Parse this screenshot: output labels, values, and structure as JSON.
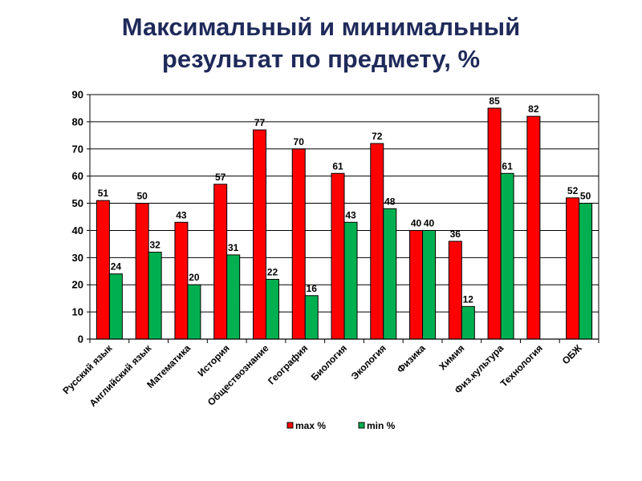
{
  "chart_data": {
    "type": "bar",
    "title_line1": "Максимальный и минимальный",
    "title_line2": "результат по предмету, %",
    "categories": [
      "Русский язык",
      "Английский язык",
      "Математика",
      "История",
      "Обществознание",
      "География",
      "Биология",
      "Экология",
      "Физика",
      "Химия",
      "Физ.культура",
      "Технология",
      "ОБЖ"
    ],
    "series": [
      {
        "name": "max %",
        "color": "#ff0000",
        "values": [
          51,
          50,
          43,
          57,
          77,
          70,
          61,
          72,
          40,
          36,
          85,
          82,
          52
        ]
      },
      {
        "name": "min %",
        "color": "#00b050",
        "values": [
          24,
          32,
          20,
          31,
          22,
          16,
          43,
          48,
          40,
          12,
          61,
          null,
          50
        ]
      }
    ],
    "ylim": [
      0,
      90
    ],
    "yticks": [
      0,
      10,
      20,
      30,
      40,
      50,
      60,
      70,
      80,
      90
    ],
    "grid": true,
    "legend": "bottom"
  }
}
